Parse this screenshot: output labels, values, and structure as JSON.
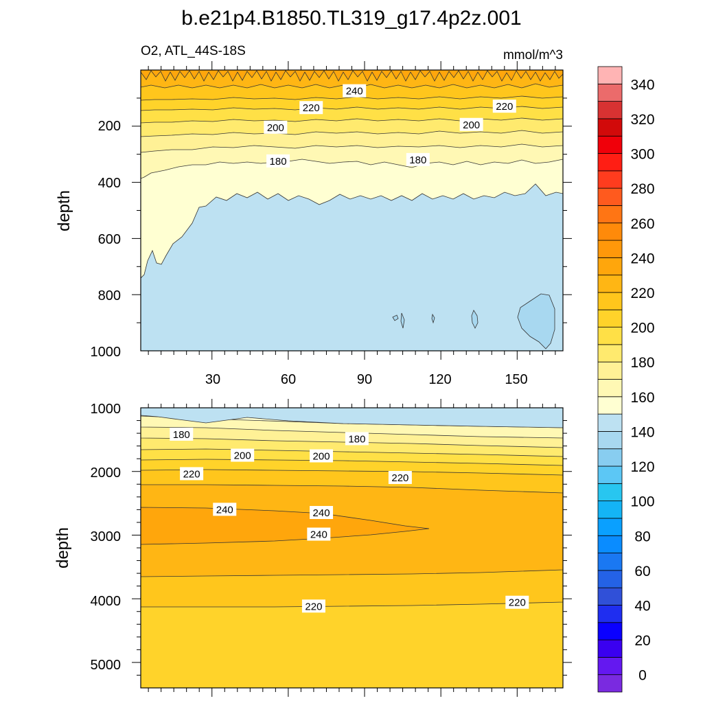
{
  "title": "b.e21p4.B1850.TL319_g17.4p2z.001",
  "chart_data": [
    {
      "type": "contour",
      "panel": "upper",
      "subtitle_left": "O2, ATL_44S-18S",
      "subtitle_right": "mmol/m^3",
      "xlabel": "",
      "ylabel": "depth",
      "xlim": [
        2,
        168
      ],
      "ylim": [
        1000,
        0
      ],
      "x_ticks": [
        "30",
        "60",
        "90",
        "120",
        "150"
      ],
      "y_ticks": [
        "200",
        "400",
        "600",
        "800",
        "1000"
      ],
      "contour_labels": [
        {
          "value": "240",
          "x": 86,
          "depth": 75
        },
        {
          "value": "220",
          "x": 69,
          "depth": 135
        },
        {
          "value": "220",
          "x": 145,
          "depth": 130
        },
        {
          "value": "200",
          "x": 55,
          "depth": 205
        },
        {
          "value": "200",
          "x": 132,
          "depth": 195
        },
        {
          "value": "180",
          "x": 56,
          "depth": 325
        },
        {
          "value": "180",
          "x": 111,
          "depth": 320
        }
      ]
    },
    {
      "type": "contour",
      "panel": "lower",
      "xlabel": "",
      "ylabel": "depth",
      "xlim": [
        2,
        168
      ],
      "ylim": [
        5400,
        1000
      ],
      "y_ticks": [
        "1000",
        "2000",
        "3000",
        "4000",
        "5000"
      ],
      "contour_labels": [
        {
          "value": "180",
          "x": 18,
          "depth": 1420
        },
        {
          "value": "180",
          "x": 87,
          "depth": 1490
        },
        {
          "value": "200",
          "x": 42,
          "depth": 1750
        },
        {
          "value": "200",
          "x": 73,
          "depth": 1760
        },
        {
          "value": "220",
          "x": 22,
          "depth": 2040
        },
        {
          "value": "220",
          "x": 104,
          "depth": 2100
        },
        {
          "value": "240",
          "x": 35,
          "depth": 2600
        },
        {
          "value": "240",
          "x": 73,
          "depth": 2650
        },
        {
          "value": "240",
          "x": 72,
          "depth": 2990
        },
        {
          "value": "220",
          "x": 70,
          "depth": 4120
        },
        {
          "value": "220",
          "x": 150,
          "depth": 4060
        }
      ]
    }
  ],
  "colorbar": {
    "tick_labels": [
      "0",
      "20",
      "40",
      "60",
      "80",
      "100",
      "120",
      "140",
      "160",
      "180",
      "200",
      "220",
      "240",
      "260",
      "280",
      "300",
      "320",
      "340"
    ],
    "colors": [
      "#7a2ae0",
      "#6418f0",
      "#3a00f0",
      "#0a00ff",
      "#1f2ef0",
      "#3050d8",
      "#2462e6",
      "#1a78f2",
      "#0a8cff",
      "#0aa0ff",
      "#14b4f5",
      "#28c6f0",
      "#5cc7f5",
      "#88cdf0",
      "#a8d8f0",
      "#bde1f2",
      "#ffffd2",
      "#fff8b4",
      "#fff196",
      "#ffea6e",
      "#ffe046",
      "#ffd32a",
      "#ffc61c",
      "#ffb614",
      "#ffa60c",
      "#ff980a",
      "#ff8a0a",
      "#ff7514",
      "#ff5a1e",
      "#ff3c1e",
      "#ff1e14",
      "#f0000a",
      "#d20a0a",
      "#d83232",
      "#eb6b6b",
      "#ffb4b4"
    ]
  }
}
